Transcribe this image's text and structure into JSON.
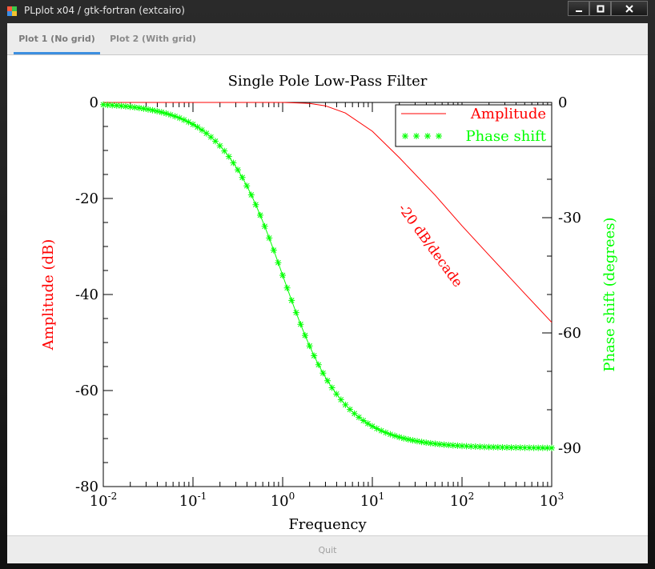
{
  "window": {
    "title": "PLplot x04 / gtk-fortran (extcairo)",
    "controls": [
      "minimize",
      "maximize",
      "close"
    ]
  },
  "tabs": [
    {
      "label": "Plot 1 (No grid)",
      "active": true
    },
    {
      "label": "Plot 2 (With grid)",
      "active": false
    }
  ],
  "footer": {
    "quit_label": "Quit"
  },
  "colors": {
    "accent": "#3d8fe0",
    "amplitude": "#ff0000",
    "phase": "#00ff00",
    "frame": "#000000"
  },
  "chart_data": {
    "type": "line",
    "title": "Single Pole Low-Pass Filter",
    "xlabel": "Frequency",
    "ylabel": "Amplitude (dB)",
    "y2label": "Phase shift (degrees)",
    "xscale": "log",
    "xlim": [
      0.01,
      1000
    ],
    "ylim": [
      -80,
      0
    ],
    "y2lim": [
      -100,
      0
    ],
    "grid": false,
    "legend_position": "top-right",
    "x_ticks": [
      {
        "base": "10",
        "exp": "-2"
      },
      {
        "base": "10",
        "exp": "-1"
      },
      {
        "base": "10",
        "exp": "0"
      },
      {
        "base": "10",
        "exp": "1"
      },
      {
        "base": "10",
        "exp": "2"
      },
      {
        "base": "10",
        "exp": "3"
      }
    ],
    "y_ticks": [
      "0",
      "-20",
      "-40",
      "-60",
      "-80"
    ],
    "y2_ticks": [
      "0",
      "-30",
      "-60",
      "-90"
    ],
    "annotation": "-20 dB/decade",
    "series": [
      {
        "name": "Amplitude",
        "axis": "left",
        "marker": "none",
        "x": [
          0.01,
          0.1,
          0.5,
          1,
          2,
          3,
          5,
          10,
          20,
          50,
          100,
          200,
          500,
          1000
        ],
        "y": [
          0,
          0,
          0,
          0,
          -0.2,
          -0.7,
          -2.2,
          -6,
          -11.5,
          -19.3,
          -25.7,
          -31.8,
          -39.8,
          -45.8
        ]
      },
      {
        "name": "Phase shift",
        "axis": "right",
        "marker": "*",
        "x": [
          0.01,
          0.03,
          0.1,
          0.2,
          0.3,
          0.5,
          0.7,
          1,
          1.5,
          2,
          3,
          5,
          10,
          20,
          50,
          100,
          1000
        ],
        "y": [
          -0.6,
          -1.7,
          -5.7,
          -11.3,
          -16.7,
          -26.6,
          -35,
          -45,
          -56.3,
          -63.4,
          -71.6,
          -78.7,
          -84.3,
          -87.1,
          -88.9,
          -89.4,
          -89.9
        ]
      }
    ]
  }
}
